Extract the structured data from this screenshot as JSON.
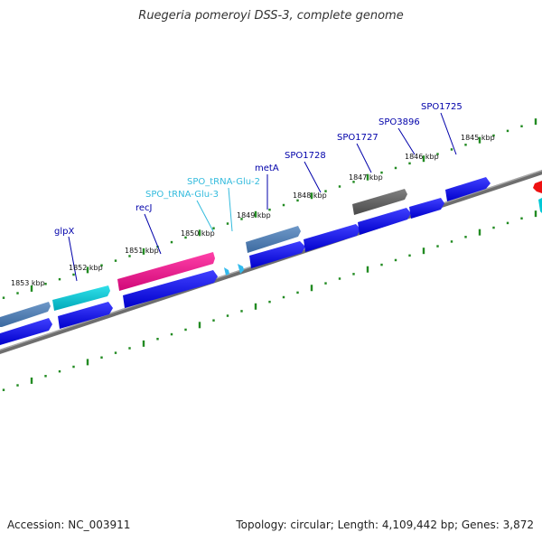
{
  "title": "Ruegeria pomeroyi DSS-3, complete genome",
  "accession": "Accession: NC_003911",
  "summary": "Topology: circular; Length: 4,109,442 bp; Genes: 3,872",
  "colors": {
    "backbone": "#8a8a8a",
    "ticks": "#228b22",
    "cds_forward": "#0000ee",
    "cds_reverse": "#5a82b4",
    "trna": "#00c8d6",
    "trna_label": "#33bbdd",
    "highlight": "#ee1090",
    "pseudo": "#666666",
    "edge_red": "#ee1111",
    "label": "#0000aa"
  },
  "kbp_ticks": [
    {
      "text": "1853 kbp"
    },
    {
      "text": "1852 kbp"
    },
    {
      "text": "1851 kbp"
    },
    {
      "text": "1850 kbp"
    },
    {
      "text": "1849 kbp"
    },
    {
      "text": "1848 kbp"
    },
    {
      "text": "1847 kbp"
    },
    {
      "text": "1846 kbp"
    },
    {
      "text": "1845 kbp"
    }
  ],
  "gene_labels": [
    {
      "text": "glpX",
      "kind": "cds"
    },
    {
      "text": "recJ",
      "kind": "cds"
    },
    {
      "text": "SPO_tRNA-Glu-3",
      "kind": "trna"
    },
    {
      "text": "SPO_tRNA-Glu-2",
      "kind": "trna"
    },
    {
      "text": "metA",
      "kind": "cds"
    },
    {
      "text": "SPO1728",
      "kind": "cds"
    },
    {
      "text": "SPO1727",
      "kind": "cds"
    },
    {
      "text": "SPO3896",
      "kind": "cds"
    },
    {
      "text": "SPO1725",
      "kind": "cds"
    }
  ]
}
